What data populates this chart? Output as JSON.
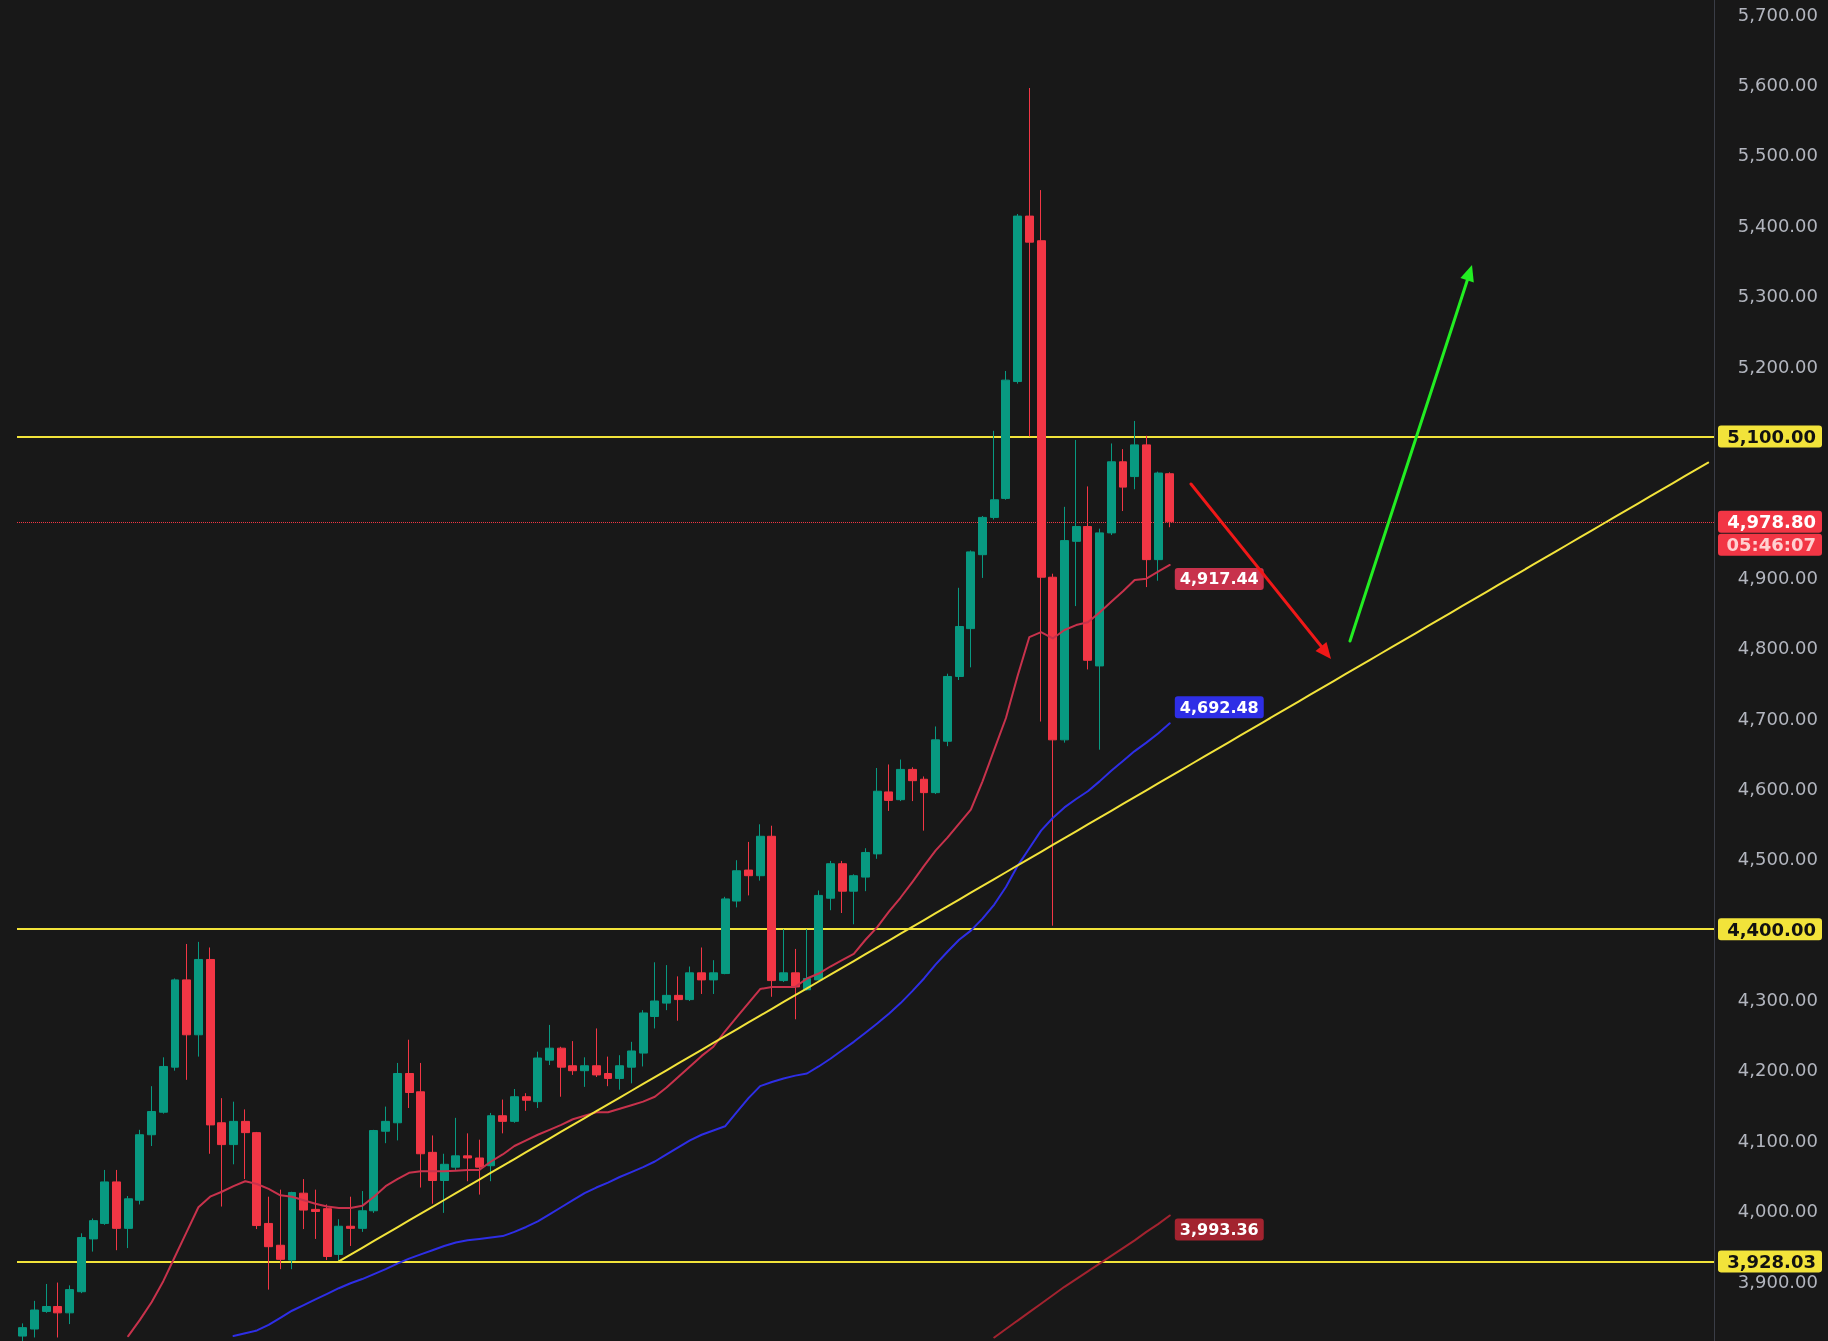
{
  "chart_data": {
    "type": "candlestick",
    "categories": [
      null,
      null,
      null,
      null,
      null,
      null,
      null,
      null,
      null,
      null,
      null,
      null,
      null,
      null,
      null,
      null,
      null,
      null,
      null,
      null,
      null,
      null,
      null,
      null,
      null,
      null,
      null,
      null,
      null,
      null,
      null,
      null,
      null,
      null,
      null,
      null,
      null,
      null,
      null,
      null,
      null,
      null,
      null,
      null,
      null,
      null,
      null,
      null,
      null,
      null,
      null,
      null,
      null,
      null,
      null,
      null,
      null,
      null,
      null,
      null,
      null,
      null,
      null,
      null,
      null,
      null,
      null,
      null,
      null,
      null,
      null,
      null,
      null,
      null,
      null,
      null,
      null,
      null,
      null,
      null,
      null,
      null,
      null,
      null,
      null,
      null,
      null,
      null,
      null,
      null,
      null,
      null,
      null,
      null,
      null,
      null,
      null,
      null,
      null,
      null,
      null,
      null,
      null,
      null,
      null,
      null,
      null,
      null,
      null,
      null,
      null,
      null,
      null,
      null,
      null,
      null,
      null,
      null,
      null,
      null,
      null,
      null,
      null,
      null,
      null,
      null,
      null,
      null,
      null,
      null,
      null,
      null,
      null,
      null,
      null,
      null,
      null,
      null,
      null,
      null,
      null,
      null,
      null,
      null,
      null
    ],
    "ylim": [
      3815,
      5720
    ],
    "yticks": [
      {
        "value": 3900,
        "label": "3,900.00"
      },
      {
        "value": 4000,
        "label": "4,000.00"
      },
      {
        "value": 4100,
        "label": "4,100.00"
      },
      {
        "value": 4200,
        "label": "4,200.00"
      },
      {
        "value": 4300,
        "label": "4,300.00"
      },
      {
        "value": 4500,
        "label": "4,500.00"
      },
      {
        "value": 4600,
        "label": "4,600.00"
      },
      {
        "value": 4700,
        "label": "4,700.00"
      },
      {
        "value": 4800,
        "label": "4,800.00"
      },
      {
        "value": 4900,
        "label": "4,900.00"
      },
      {
        "value": 5200,
        "label": "5,200.00"
      },
      {
        "value": 5300,
        "label": "5,300.00"
      },
      {
        "value": 5400,
        "label": "5,400.00"
      },
      {
        "value": 5500,
        "label": "5,500.00"
      },
      {
        "value": 5600,
        "label": "5,600.00"
      },
      {
        "value": 5700,
        "label": "5,700.00"
      }
    ],
    "tick_labels": "y",
    "series": [
      {
        "type": "candlestick",
        "ohlc": [
          [
            3822,
            3840,
            3815,
            3834
          ],
          [
            3832,
            3872,
            3820,
            3859
          ],
          [
            3857,
            3896,
            3855,
            3864
          ],
          [
            3864,
            3898,
            3820,
            3855
          ],
          [
            3855,
            3894,
            3839,
            3888
          ],
          [
            3885,
            3968,
            3883,
            3962
          ],
          [
            3960,
            3989,
            3942,
            3986
          ],
          [
            3982,
            4058,
            3980,
            4041
          ],
          [
            4041,
            4058,
            3944,
            3975
          ],
          [
            3975,
            4021,
            3947,
            4017
          ],
          [
            4015,
            4115,
            4009,
            4108
          ],
          [
            4108,
            4177,
            4092,
            4141
          ],
          [
            4140,
            4218,
            4138,
            4205
          ],
          [
            4204,
            4330,
            4199,
            4328
          ],
          [
            4328,
            4379,
            4186,
            4250
          ],
          [
            4250,
            4382,
            4219,
            4357
          ],
          [
            4357,
            4374,
            4081,
            4122
          ],
          [
            4125,
            4160,
            4006,
            4094
          ],
          [
            4094,
            4155,
            4066,
            4127
          ],
          [
            4127,
            4144,
            4045,
            4111
          ],
          [
            4111,
            4112,
            3974,
            3979
          ],
          [
            3982,
            4020,
            3888,
            3949
          ],
          [
            3951,
            4030,
            3917,
            3931
          ],
          [
            3930,
            4027,
            3917,
            4026
          ],
          [
            4025,
            4045,
            3974,
            4001
          ],
          [
            4002,
            4030,
            3960,
            3999
          ],
          [
            4003,
            4009,
            3930,
            3935
          ],
          [
            3938,
            3988,
            3928,
            3978
          ],
          [
            3978,
            4020,
            3950,
            3975
          ],
          [
            3975,
            4028,
            3970,
            4000
          ],
          [
            4000,
            4115,
            3997,
            4114
          ],
          [
            4113,
            4148,
            4096,
            4127
          ],
          [
            4125,
            4210,
            4100,
            4195
          ],
          [
            4195,
            4243,
            4146,
            4168
          ],
          [
            4169,
            4210,
            4033,
            4081
          ],
          [
            4083,
            4107,
            4010,
            4043
          ],
          [
            4043,
            4081,
            3997,
            4066
          ],
          [
            4062,
            4132,
            4058,
            4078
          ],
          [
            4078,
            4110,
            4042,
            4075
          ],
          [
            4075,
            4101,
            4023,
            4062
          ],
          [
            4064,
            4139,
            4042,
            4135
          ],
          [
            4135,
            4158,
            4110,
            4127
          ],
          [
            4127,
            4173,
            4125,
            4162
          ],
          [
            4162,
            4167,
            4142,
            4157
          ],
          [
            4155,
            4226,
            4146,
            4217
          ],
          [
            4214,
            4264,
            4207,
            4231
          ],
          [
            4231,
            4233,
            4162,
            4204
          ],
          [
            4206,
            4241,
            4193,
            4199
          ],
          [
            4199,
            4218,
            4176,
            4206
          ],
          [
            4206,
            4259,
            4190,
            4193
          ],
          [
            4195,
            4219,
            4177,
            4188
          ],
          [
            4188,
            4221,
            4172,
            4206
          ],
          [
            4204,
            4240,
            4181,
            4227
          ],
          [
            4224,
            4285,
            4205,
            4281
          ],
          [
            4276,
            4353,
            4259,
            4298
          ],
          [
            4295,
            4349,
            4285,
            4306
          ],
          [
            4306,
            4333,
            4270,
            4300
          ],
          [
            4300,
            4347,
            4298,
            4338
          ],
          [
            4338,
            4374,
            4308,
            4328
          ],
          [
            4328,
            4356,
            4308,
            4338
          ],
          [
            4337,
            4446,
            4336,
            4443
          ],
          [
            4440,
            4498,
            4431,
            4483
          ],
          [
            4484,
            4524,
            4448,
            4476
          ],
          [
            4476,
            4549,
            4469,
            4532
          ],
          [
            4532,
            4547,
            4304,
            4327
          ],
          [
            4327,
            4400,
            4325,
            4338
          ],
          [
            4338,
            4372,
            4272,
            4318
          ],
          [
            4314,
            4400,
            4313,
            4330
          ],
          [
            4328,
            4455,
            4327,
            4448
          ],
          [
            4444,
            4497,
            4427,
            4493
          ],
          [
            4493,
            4497,
            4423,
            4454
          ],
          [
            4454,
            4478,
            4407,
            4476
          ],
          [
            4474,
            4515,
            4454,
            4509
          ],
          [
            4507,
            4629,
            4500,
            4596
          ],
          [
            4595,
            4634,
            4568,
            4583
          ],
          [
            4584,
            4641,
            4582,
            4627
          ],
          [
            4627,
            4630,
            4582,
            4611
          ],
          [
            4613,
            4617,
            4540,
            4594
          ],
          [
            4594,
            4688,
            4592,
            4669
          ],
          [
            4667,
            4763,
            4660,
            4759
          ],
          [
            4759,
            4885,
            4754,
            4830
          ],
          [
            4827,
            4938,
            4772,
            4936
          ],
          [
            4932,
            4987,
            4899,
            4985
          ],
          [
            4985,
            5108,
            4982,
            5010
          ],
          [
            5012,
            5193,
            5010,
            5180
          ],
          [
            5178,
            5416,
            5175,
            5413
          ],
          [
            5413,
            5595,
            5100,
            5376
          ],
          [
            5378,
            5450,
            4695,
            4900
          ],
          [
            4900,
            4905,
            4405,
            4669
          ],
          [
            4669,
            5000,
            4665,
            4952
          ],
          [
            4951,
            5095,
            4859,
            4972
          ],
          [
            4972,
            5029,
            4769,
            4782
          ],
          [
            4774,
            4969,
            4655,
            4963
          ],
          [
            4963,
            5090,
            4960,
            5064
          ],
          [
            5064,
            5082,
            4994,
            5028
          ],
          [
            5043,
            5122,
            5025,
            5088
          ],
          [
            5088,
            5101,
            4886,
            4925
          ],
          [
            4925,
            5050,
            4895,
            5048
          ],
          [
            5047,
            5049,
            4971,
            4978.8
          ],
          null,
          null,
          null,
          null,
          null,
          null,
          null,
          null,
          null,
          null,
          null,
          null,
          null,
          null,
          null,
          null,
          null,
          null,
          null,
          null,
          null,
          null,
          null,
          null,
          null,
          null,
          null,
          null,
          null,
          null,
          null,
          null,
          null,
          null,
          null,
          null,
          null,
          null,
          null,
          null,
          null,
          null,
          null,
          null,
          null,
          null
        ],
        "colors": [
          "#089981",
          "#089981",
          "#089981",
          "#f23645",
          "#089981",
          "#089981",
          "#089981",
          "#089981",
          "#f23645",
          "#089981",
          "#089981",
          "#089981",
          "#089981",
          "#089981",
          "#f23645",
          "#089981",
          "#f23645",
          "#f23645",
          "#089981",
          "#f23645",
          "#f23645",
          "#f23645",
          "#f23645",
          "#089981",
          "#f23645",
          "#f23645",
          "#f23645",
          "#089981",
          "#f23645",
          "#089981",
          "#089981",
          "#089981",
          "#089981",
          "#f23645",
          "#f23645",
          "#f23645",
          "#089981",
          "#089981",
          "#f23645",
          "#f23645",
          "#089981",
          "#f23645",
          "#089981",
          "#f23645",
          "#089981",
          "#089981",
          "#f23645",
          "#f23645",
          "#089981",
          "#f23645",
          "#f23645",
          "#089981",
          "#089981",
          "#089981",
          "#089981",
          "#089981",
          "#f23645",
          "#089981",
          "#f23645",
          "#089981",
          "#089981",
          "#089981",
          "#f23645",
          "#089981",
          "#f23645",
          "#089981",
          "#f23645",
          "#089981",
          "#089981",
          "#089981",
          "#f23645",
          "#089981",
          "#089981",
          "#089981",
          "#f23645",
          "#089981",
          "#f23645",
          "#f23645",
          "#089981",
          "#089981",
          "#089981",
          "#089981",
          "#089981",
          "#089981",
          "#089981",
          "#089981",
          "#f23645",
          "#f23645",
          "#f23645",
          "#089981",
          "#089981",
          "#f23645",
          "#089981",
          "#089981",
          "#f23645",
          "#089981",
          "#f23645",
          "#089981",
          "#f23645",
          null,
          null,
          null,
          null,
          null,
          null,
          null,
          null,
          null,
          null,
          null,
          null,
          null,
          null,
          null,
          null,
          null,
          null,
          null,
          null,
          null,
          null,
          null,
          null,
          null,
          null,
          null,
          null,
          null,
          null,
          null,
          null,
          null,
          null,
          null,
          null,
          null,
          null,
          null,
          null,
          null,
          null,
          null,
          null,
          null,
          null
        ]
      },
      {
        "type": "line",
        "color": "#c8324c",
        "values": [
          null,
          null,
          null,
          null,
          null,
          null,
          null,
          null,
          null,
          3822,
          3845,
          3870,
          3900,
          3935,
          3970,
          4005,
          4020,
          4027,
          4035,
          4042,
          4038,
          4031,
          4022,
          4020,
          4015,
          4010,
          4006,
          4004,
          4004,
          4007,
          4020,
          4035,
          4045,
          4054,
          4056,
          4056,
          4056,
          4057,
          4058,
          4058,
          4070,
          4080,
          4092,
          4100,
          4108,
          4115,
          4122,
          4130,
          4135,
          4140,
          4140,
          4145,
          4150,
          4155,
          4162,
          4175,
          4190,
          4205,
          4220,
          4233,
          4255,
          4275,
          4295,
          4315,
          4318,
          4318,
          4318,
          4330,
          4337,
          4347,
          4356,
          4365,
          4385,
          4403,
          4425,
          4445,
          4467,
          4490,
          4512,
          4530,
          4550,
          4570,
          4610,
          4655,
          4700,
          4760,
          4815,
          4822,
          4813,
          4825,
          4832,
          4836,
          4850,
          4865,
          4880,
          4896,
          4898,
          4908,
          4917.44,
          null,
          null,
          null,
          null,
          null,
          null,
          null,
          null,
          null,
          null,
          null,
          null,
          null,
          null,
          null,
          null,
          null,
          null,
          null,
          null,
          null,
          null,
          null,
          null,
          null,
          null,
          null,
          null,
          null,
          null,
          null,
          null,
          null,
          null,
          null,
          null,
          null,
          null,
          null,
          null,
          null,
          null,
          null,
          null,
          null,
          null
        ],
        "value_labels": [
          null,
          null,
          null,
          null,
          null,
          null,
          null,
          null,
          null,
          null,
          null,
          null,
          null,
          null,
          null,
          null,
          null,
          null,
          null,
          null,
          null,
          null,
          null,
          null,
          null,
          null,
          null,
          null,
          null,
          null,
          null,
          null,
          null,
          null,
          null,
          null,
          null,
          null,
          null,
          null,
          null,
          null,
          null,
          null,
          null,
          null,
          null,
          null,
          null,
          null,
          null,
          null,
          null,
          null,
          null,
          null,
          null,
          null,
          null,
          null,
          null,
          null,
          null,
          null,
          null,
          null,
          null,
          null,
          null,
          null,
          null,
          null,
          null,
          null,
          null,
          null,
          null,
          null,
          null,
          null,
          null,
          null,
          null,
          null,
          null,
          null,
          null,
          null,
          null,
          null,
          null,
          null,
          null,
          null,
          null,
          null,
          null,
          null,
          "4,917.44",
          null,
          null,
          null,
          null,
          null,
          null,
          null,
          null,
          null,
          null,
          null,
          null,
          null,
          null,
          null,
          null,
          null,
          null,
          null,
          null,
          null,
          null,
          null,
          null,
          null,
          null,
          null,
          null,
          null,
          null,
          null,
          null,
          null,
          null,
          null,
          null,
          null,
          null,
          null,
          null,
          null,
          null,
          null,
          null,
          null,
          null
        ]
      },
      {
        "type": "line",
        "color": "#2e2ee6",
        "values": [
          null,
          null,
          null,
          null,
          null,
          null,
          null,
          null,
          null,
          null,
          null,
          null,
          null,
          null,
          null,
          null,
          null,
          null,
          3822,
          3826,
          3830,
          3838,
          3848,
          3858,
          3866,
          3874,
          3882,
          3890,
          3897,
          3903,
          3910,
          3917,
          3925,
          3932,
          3938,
          3944,
          3950,
          3955,
          3958,
          3960,
          3962,
          3964,
          3970,
          3977,
          3985,
          3995,
          4005,
          4015,
          4025,
          4033,
          4040,
          4048,
          4055,
          4062,
          4070,
          4080,
          4090,
          4100,
          4108,
          4114,
          4120,
          4140,
          4160,
          4177,
          4183,
          4188,
          4192,
          4195,
          4205,
          4216,
          4228,
          4240,
          4253,
          4266,
          4280,
          4295,
          4312,
          4330,
          4350,
          4368,
          4385,
          4398,
          4415,
          4435,
          4460,
          4490,
          4515,
          4540,
          4558,
          4573,
          4585,
          4596,
          4610,
          4625,
          4639,
          4653,
          4665,
          4678,
          4692.48,
          null,
          null,
          null,
          null,
          null,
          null,
          null,
          null,
          null,
          null,
          null,
          null,
          null,
          null,
          null,
          null,
          null,
          null,
          null,
          null,
          null,
          null,
          null,
          null,
          null,
          null,
          null,
          null,
          null,
          null,
          null,
          null,
          null,
          null,
          null,
          null,
          null,
          null,
          null,
          null,
          null,
          null,
          null,
          null,
          null,
          null
        ],
        "value_labels": [
          null,
          null,
          null,
          null,
          null,
          null,
          null,
          null,
          null,
          null,
          null,
          null,
          null,
          null,
          null,
          null,
          null,
          null,
          null,
          null,
          null,
          null,
          null,
          null,
          null,
          null,
          null,
          null,
          null,
          null,
          null,
          null,
          null,
          null,
          null,
          null,
          null,
          null,
          null,
          null,
          null,
          null,
          null,
          null,
          null,
          null,
          null,
          null,
          null,
          null,
          null,
          null,
          null,
          null,
          null,
          null,
          null,
          null,
          null,
          null,
          null,
          null,
          null,
          null,
          null,
          null,
          null,
          null,
          null,
          null,
          null,
          null,
          null,
          null,
          null,
          null,
          null,
          null,
          null,
          null,
          null,
          null,
          null,
          null,
          null,
          null,
          null,
          null,
          null,
          null,
          null,
          null,
          null,
          null,
          null,
          null,
          null,
          null,
          "4,692.48",
          null,
          null,
          null,
          null,
          null,
          null,
          null,
          null,
          null,
          null,
          null,
          null,
          null,
          null,
          null,
          null,
          null,
          null,
          null,
          null,
          null,
          null,
          null,
          null,
          null,
          null,
          null,
          null,
          null,
          null,
          null,
          null,
          null,
          null,
          null,
          null,
          null,
          null,
          null,
          null,
          null,
          null,
          null,
          null,
          null,
          null
        ]
      },
      {
        "type": "line",
        "color": "#a3232f",
        "values": [
          null,
          null,
          null,
          null,
          null,
          null,
          null,
          null,
          null,
          null,
          null,
          null,
          null,
          null,
          null,
          null,
          null,
          null,
          null,
          null,
          null,
          null,
          null,
          null,
          null,
          null,
          null,
          null,
          null,
          null,
          null,
          null,
          null,
          null,
          null,
          null,
          null,
          null,
          null,
          null,
          null,
          null,
          null,
          null,
          null,
          null,
          null,
          null,
          null,
          null,
          null,
          null,
          null,
          null,
          null,
          null,
          null,
          null,
          null,
          null,
          null,
          null,
          null,
          null,
          null,
          null,
          null,
          null,
          null,
          null,
          null,
          null,
          null,
          null,
          null,
          null,
          null,
          null,
          null,
          null,
          null,
          null,
          null,
          3820,
          3832,
          3844,
          3856,
          3868,
          3880,
          3892,
          3903,
          3914,
          3925,
          3936,
          3947,
          3958,
          3970,
          3981,
          3993.36,
          null,
          null,
          null,
          null,
          null,
          null,
          null,
          null,
          null,
          null,
          null,
          null,
          null,
          null,
          null,
          null,
          null,
          null,
          null,
          null,
          null,
          null,
          null,
          null,
          null,
          null,
          null,
          null,
          null,
          null,
          null,
          null,
          null,
          null,
          null,
          null,
          null,
          null,
          null,
          null,
          null,
          null,
          null,
          null,
          null,
          null
        ],
        "value_labels": [
          null,
          null,
          null,
          null,
          null,
          null,
          null,
          null,
          null,
          null,
          null,
          null,
          null,
          null,
          null,
          null,
          null,
          null,
          null,
          null,
          null,
          null,
          null,
          null,
          null,
          null,
          null,
          null,
          null,
          null,
          null,
          null,
          null,
          null,
          null,
          null,
          null,
          null,
          null,
          null,
          null,
          null,
          null,
          null,
          null,
          null,
          null,
          null,
          null,
          null,
          null,
          null,
          null,
          null,
          null,
          null,
          null,
          null,
          null,
          null,
          null,
          null,
          null,
          null,
          null,
          null,
          null,
          null,
          null,
          null,
          null,
          null,
          null,
          null,
          null,
          null,
          null,
          null,
          null,
          null,
          null,
          null,
          null,
          null,
          null,
          null,
          null,
          null,
          null,
          null,
          null,
          null,
          null,
          null,
          null,
          null,
          null,
          null,
          "3,993.36",
          null,
          null,
          null,
          null,
          null,
          null,
          null,
          null,
          null,
          null,
          null,
          null,
          null,
          null,
          null,
          null,
          null,
          null,
          null,
          null,
          null,
          null,
          null,
          null,
          null,
          null,
          null,
          null,
          null,
          null,
          null,
          null,
          null,
          null,
          null,
          null,
          null,
          null,
          null,
          null,
          null,
          null,
          null,
          null,
          null,
          null
        ]
      },
      {
        "type": "line",
        "color": "#f2e33a",
        "values": [
          null,
          null,
          null,
          null,
          null,
          null,
          null,
          null,
          null,
          null,
          null,
          null,
          null,
          null,
          null,
          null,
          null,
          null,
          null,
          null,
          null,
          null,
          null,
          null,
          null,
          null,
          null,
          3928,
          3937.7,
          3947.4,
          3957.1,
          3966.8,
          3976.5,
          3986.2,
          3995.9,
          4005.6,
          4015.3,
          4025,
          4034.7,
          4044.4,
          4054.1,
          4063.8,
          4073.5,
          4083.2,
          4092.9,
          4102.6,
          4112.3,
          4122,
          4131.7,
          4141.4,
          4151.1,
          4160.8,
          4170.5,
          4180.2,
          4189.9,
          4199.6,
          4209.3,
          4219,
          4228.7,
          4238.4,
          4248.1,
          4257.8,
          4267.5,
          4277.2,
          4286.9,
          4296.6,
          4306.3,
          4316,
          4325.7,
          4335.4,
          4345.1,
          4354.8,
          4364.5,
          4374.2,
          4383.9,
          4393.6,
          4403.3,
          4413,
          4422.7,
          4432.4,
          4442.1,
          4451.8,
          4461.5,
          4471.2,
          4480.9,
          4490.6,
          4500.3,
          4510,
          4519.7,
          4529.4,
          4539.1,
          4548.8,
          4558.5,
          4568.2,
          4577.9,
          4587.6,
          4597.3,
          4607,
          4616.7,
          4626.4,
          4636.1,
          4645.8,
          4655.5,
          4665.2,
          4674.9,
          4684.6,
          4694.3,
          4704,
          4713.7,
          4723.4,
          4733.1,
          4742.8,
          4752.5,
          4762.2,
          4771.9,
          4781.6,
          4791.3,
          4801,
          4810.7,
          4820.4,
          4830.1,
          4839.8,
          4849.5,
          4859.2,
          4868.9,
          4878.6,
          4888.3,
          4898,
          4907.7,
          4917.4,
          4927.1,
          4936.8,
          4946.5,
          4956.2,
          4965.9,
          4975.6,
          4985.3,
          4995,
          5004.7,
          5014.4,
          5024.1,
          5033.8,
          5043.5,
          5053.2,
          5062.9
        ]
      }
    ],
    "ref_lines": [
      {
        "axis": "y",
        "value": 5100,
        "label": "5,100.00",
        "color": "#f2e33a"
      },
      {
        "axis": "y",
        "value": 4400,
        "label": "4,400.00",
        "color": "#f2e33a"
      },
      {
        "axis": "y",
        "value": 3928.03,
        "label": "3,928.03",
        "color": "#f2e33a"
      },
      {
        "axis": "y",
        "value": 4978.8,
        "label": "4,978.80",
        "color": "#f23645",
        "line_style": "dotted"
      }
    ],
    "annotations": [
      "05:46:07"
    ]
  }
}
